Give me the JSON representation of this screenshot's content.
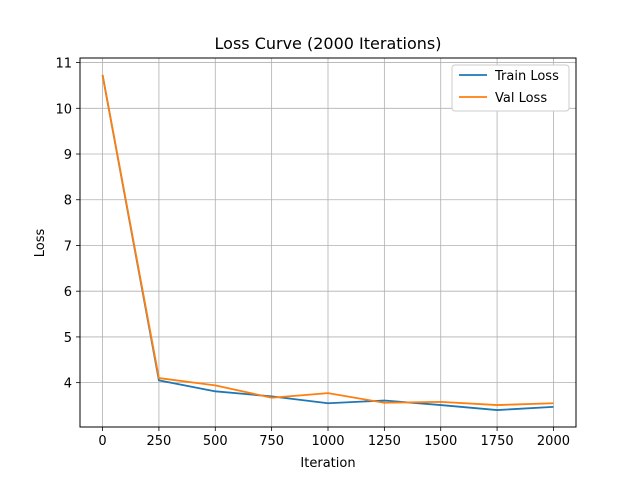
{
  "chart_data": {
    "type": "line",
    "title": "Loss Curve (2000 Iterations)",
    "xlabel": "Iteration",
    "ylabel": "Loss",
    "x": [
      0,
      250,
      500,
      750,
      1000,
      1250,
      1500,
      1750,
      2000
    ],
    "series": [
      {
        "name": "Train Loss",
        "color": "#1f77b4",
        "values": [
          10.73,
          4.05,
          3.81,
          3.7,
          3.55,
          3.61,
          3.51,
          3.4,
          3.47
        ]
      },
      {
        "name": "Val Loss",
        "color": "#ff7f0e",
        "values": [
          10.73,
          4.1,
          3.94,
          3.67,
          3.77,
          3.56,
          3.58,
          3.51,
          3.55
        ]
      }
    ],
    "xticks": [
      0,
      250,
      500,
      750,
      1000,
      1250,
      1500,
      1750,
      2000
    ],
    "yticks": [
      4,
      5,
      6,
      7,
      8,
      9,
      10,
      11
    ],
    "xlim": [
      -100,
      2100
    ],
    "ylim": [
      3.03,
      11.1
    ],
    "grid": true,
    "legend_position": "top-right"
  }
}
